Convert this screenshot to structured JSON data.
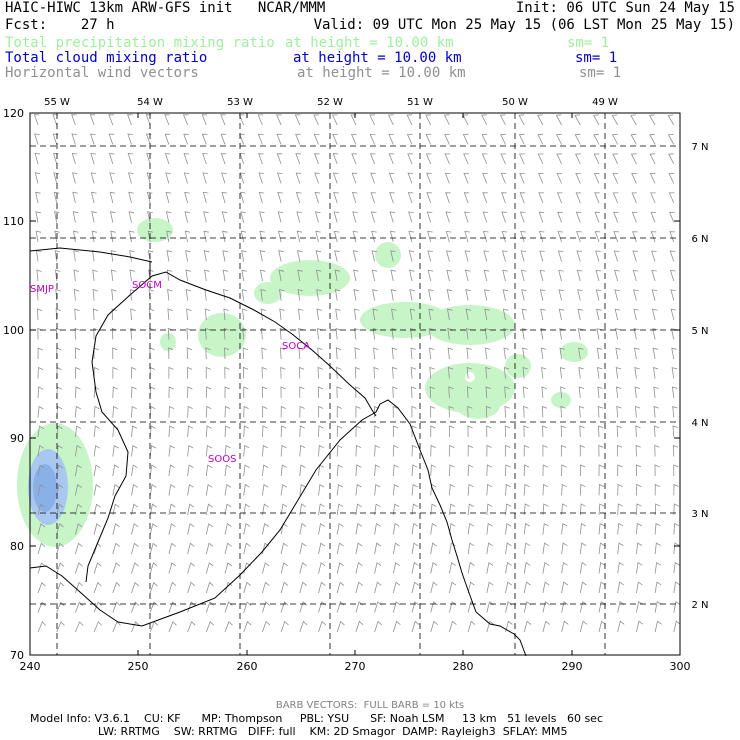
{
  "header": {
    "title": "HAIC-HIWC 13km ARW-GFS init   NCAR/MMM",
    "init": "Init: 06 UTC Sun 24 May 15",
    "fcst": "Fcst:    27 h",
    "valid": "Valid: 09 UTC Mon 25 May 15 (06 LST Mon 25 May 15)"
  },
  "fields": [
    {
      "name": "Total precipitation mixing ratio",
      "height": "at height = 10.00 km",
      "sm": "sm= 1",
      "color": "#a0f0a0"
    },
    {
      "name": "Total cloud mixing ratio",
      "height": "at height = 10.00 km",
      "sm": "sm= 1",
      "color": "#0000c8"
    },
    {
      "name": "Horizontal wind vectors",
      "height": "at height = 10.00 km",
      "sm": "sm= 1",
      "color": "#909090"
    }
  ],
  "map": {
    "top_lon_labels": [
      "55 W",
      "54 W",
      "53 W",
      "52 W",
      "51 W",
      "50 W",
      "49 W"
    ],
    "right_lat_labels": [
      "7 N",
      "6 N",
      "5 N",
      "4 N",
      "3 N",
      "2 N"
    ],
    "y_ticks": [
      "120",
      "110",
      "100",
      "90",
      "80",
      "70"
    ],
    "x_ticks": [
      "240",
      "250",
      "260",
      "270",
      "280",
      "290",
      "300"
    ],
    "sites": [
      "SMJP",
      "SOCM",
      "SOCA",
      "SOOS"
    ],
    "cloud_color": "#a8c8f0",
    "precip_color": "#c8f5c8"
  },
  "footer": {
    "barb_note": "BARB VECTORS:  FULL BARB = 10 kts",
    "model_line1": "Model Info: V3.6.1    CU: KF      MP: Thompson     PBL: YSU      SF: Noah LSM     13 km   51 levels   60 sec",
    "model_line2": "LW: RRTMG    SW: RRTMG   DIFF: full    KM: 2D Smagor  DAMP: Rayleigh3  SFLAY: MM5"
  }
}
